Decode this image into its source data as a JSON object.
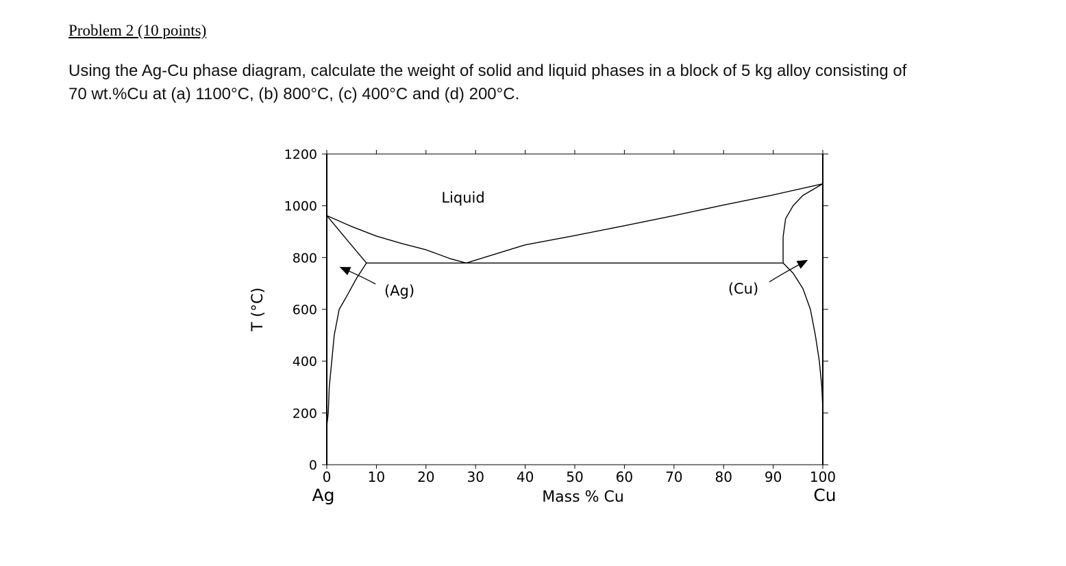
{
  "problem": {
    "title": "Problem 2 (10 points)",
    "lines": [
      "Using the Ag-Cu phase diagram, calculate the weight of solid and liquid phases in a block of 5 kg alloy consisting of",
      "70 wt.%Cu at (a) 1100°C, (b) 800°C, (c) 400°C and (d) 200°C."
    ]
  },
  "chart_data": {
    "type": "line",
    "xlabel": "Mass % Cu",
    "ylabel": "T (°C)",
    "x_end_labels": [
      "Ag",
      "Cu"
    ],
    "xlim": [
      0,
      100
    ],
    "xticks": [
      0,
      10,
      20,
      30,
      40,
      50,
      60,
      70,
      80,
      90,
      100
    ],
    "ylim": [
      0,
      1200
    ],
    "yticks": [
      0,
      200,
      400,
      600,
      800,
      1000,
      1200
    ],
    "annotations": [
      "Liquid",
      "(Ag)",
      "(Cu)"
    ],
    "series": [
      {
        "color": "#000000",
        "x": [
          0,
          5,
          10,
          15,
          20,
          25,
          28.1
        ],
        "values": [
          962,
          920,
          883,
          855,
          830,
          795,
          779
        ]
      },
      {
        "color": "#000000",
        "x": [
          28.1,
          40,
          50,
          60,
          70,
          80,
          90,
          100
        ],
        "values": [
          779,
          849,
          885,
          923,
          962,
          1003,
          1042,
          1085
        ]
      },
      {
        "color": "#000000",
        "x": [
          0,
          4,
          8
        ],
        "values": [
          962,
          870,
          779
        ]
      },
      {
        "color": "#000000",
        "x": [
          8,
          92
        ],
        "values": [
          779,
          779
        ]
      },
      {
        "color": "#000000",
        "x": [
          8,
          6,
          4,
          2.5,
          1.5,
          1,
          0.5,
          0.3,
          0
        ],
        "values": [
          779,
          720,
          650,
          600,
          500,
          400,
          300,
          200,
          150
        ]
      },
      {
        "color": "#000000",
        "x": [
          100,
          96,
          94,
          92.5,
          92,
          92
        ],
        "values": [
          1085,
          1040,
          1000,
          950,
          880,
          779
        ]
      },
      {
        "color": "#000000",
        "x": [
          92,
          94,
          96,
          97.5,
          98.5,
          99.3,
          99.8,
          100
        ],
        "values": [
          779,
          740,
          680,
          600,
          500,
          400,
          300,
          220
        ]
      }
    ]
  }
}
